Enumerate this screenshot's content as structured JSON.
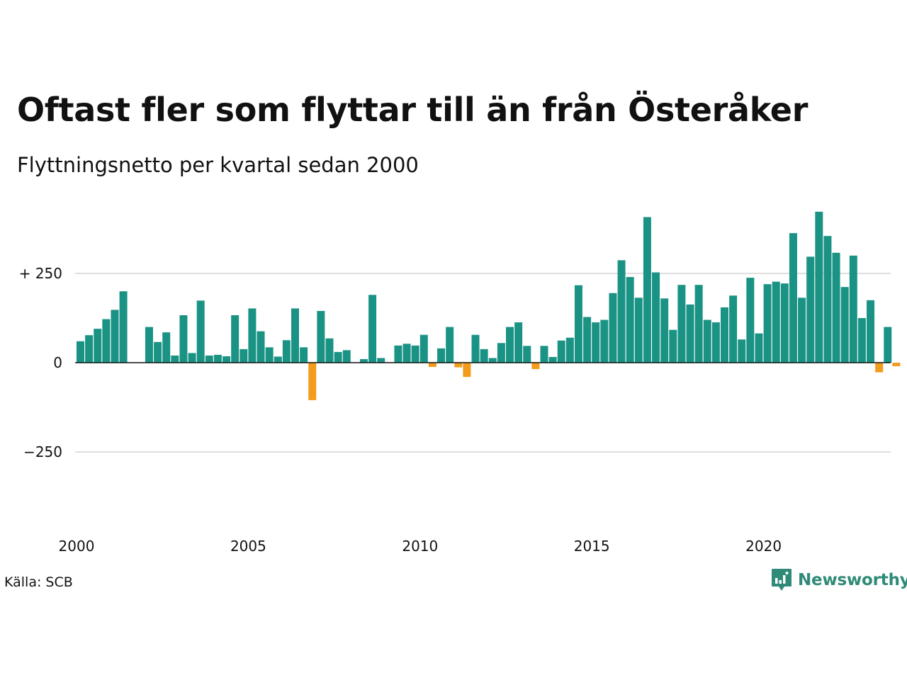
{
  "title": "Oftast fler som flyttar till än från Österåker",
  "subtitle": "Flyttningsnetto per kvartal sedan 2000",
  "source": "Källa: SCB",
  "brand": {
    "name": "Newsworthy",
    "icon": "newsworthy-logo-icon",
    "color": "#2f8a78"
  },
  "colors": {
    "positive": "#1a9385",
    "negative": "#f39c1b",
    "grid": "#dedede",
    "zero": "#111111"
  },
  "chart_data": {
    "type": "bar",
    "title": "Oftast fler som flyttar till än från Österåker",
    "subtitle": "Flyttningsnetto per kvartal sedan 2000",
    "xlabel": "",
    "ylabel": "",
    "x_unit": "quarter",
    "x_ticks": [
      "2000",
      "2005",
      "2010",
      "2015",
      "2020"
    ],
    "y_ticks": [
      {
        "value": 250,
        "label": "+ 250"
      },
      {
        "value": 0,
        "label": "0"
      },
      {
        "value": -250,
        "label": "−250"
      }
    ],
    "ylim": [
      -400,
      450
    ],
    "xlim": [
      "2000 Q1",
      "2023 Q4"
    ],
    "grid": true,
    "categories": [
      "2000 Q1",
      "2000 Q2",
      "2000 Q3",
      "2000 Q4",
      "2001 Q1",
      "2001 Q2",
      "2001 Q3",
      "2001 Q4",
      "2002 Q1",
      "2002 Q2",
      "2002 Q3",
      "2002 Q4",
      "2003 Q1",
      "2003 Q2",
      "2003 Q3",
      "2003 Q4",
      "2004 Q1",
      "2004 Q2",
      "2004 Q3",
      "2004 Q4",
      "2005 Q1",
      "2005 Q2",
      "2005 Q3",
      "2005 Q4",
      "2006 Q1",
      "2006 Q2",
      "2006 Q3",
      "2006 Q4",
      "2007 Q1",
      "2007 Q2",
      "2007 Q3",
      "2007 Q4",
      "2008 Q1",
      "2008 Q2",
      "2008 Q3",
      "2008 Q4",
      "2009 Q1",
      "2009 Q2",
      "2009 Q3",
      "2009 Q4",
      "2010 Q1",
      "2010 Q2",
      "2010 Q3",
      "2010 Q4",
      "2011 Q1",
      "2011 Q2",
      "2011 Q3",
      "2011 Q4",
      "2012 Q1",
      "2012 Q2",
      "2012 Q3",
      "2012 Q4",
      "2013 Q1",
      "2013 Q2",
      "2013 Q3",
      "2013 Q4",
      "2014 Q1",
      "2014 Q2",
      "2014 Q3",
      "2014 Q4",
      "2015 Q1",
      "2015 Q2",
      "2015 Q3",
      "2015 Q4",
      "2016 Q1",
      "2016 Q2",
      "2016 Q3",
      "2016 Q4",
      "2017 Q1",
      "2017 Q2",
      "2017 Q3",
      "2017 Q4",
      "2018 Q1",
      "2018 Q2",
      "2018 Q3",
      "2018 Q4",
      "2019 Q1",
      "2019 Q2",
      "2019 Q3",
      "2019 Q4",
      "2020 Q1",
      "2020 Q2",
      "2020 Q3",
      "2020 Q4",
      "2021 Q1",
      "2021 Q2",
      "2021 Q3",
      "2021 Q4",
      "2022 Q1",
      "2022 Q2",
      "2022 Q3",
      "2022 Q4",
      "2023 Q1",
      "2023 Q2",
      "2023 Q3",
      "2023 Q4"
    ],
    "values": [
      60,
      77,
      95,
      122,
      148,
      200,
      0,
      0,
      100,
      58,
      85,
      20,
      133,
      27,
      174,
      20,
      22,
      18,
      133,
      38,
      152,
      88,
      43,
      17,
      63,
      152,
      43,
      -105,
      145,
      68,
      30,
      35,
      0,
      10,
      190,
      13,
      0,
      48,
      53,
      48,
      78,
      -12,
      40,
      100,
      -13,
      -40,
      78,
      38,
      13,
      55,
      100,
      113,
      47,
      -18,
      47,
      16,
      62,
      70,
      217,
      128,
      113,
      120,
      195,
      287,
      240,
      182,
      408,
      253,
      180,
      92,
      218,
      163,
      218,
      120,
      113,
      155,
      188,
      65,
      238,
      82,
      220,
      227,
      222,
      363,
      182,
      297,
      423,
      355,
      308,
      212,
      300,
      125,
      175,
      -27,
      100,
      -10
    ]
  }
}
